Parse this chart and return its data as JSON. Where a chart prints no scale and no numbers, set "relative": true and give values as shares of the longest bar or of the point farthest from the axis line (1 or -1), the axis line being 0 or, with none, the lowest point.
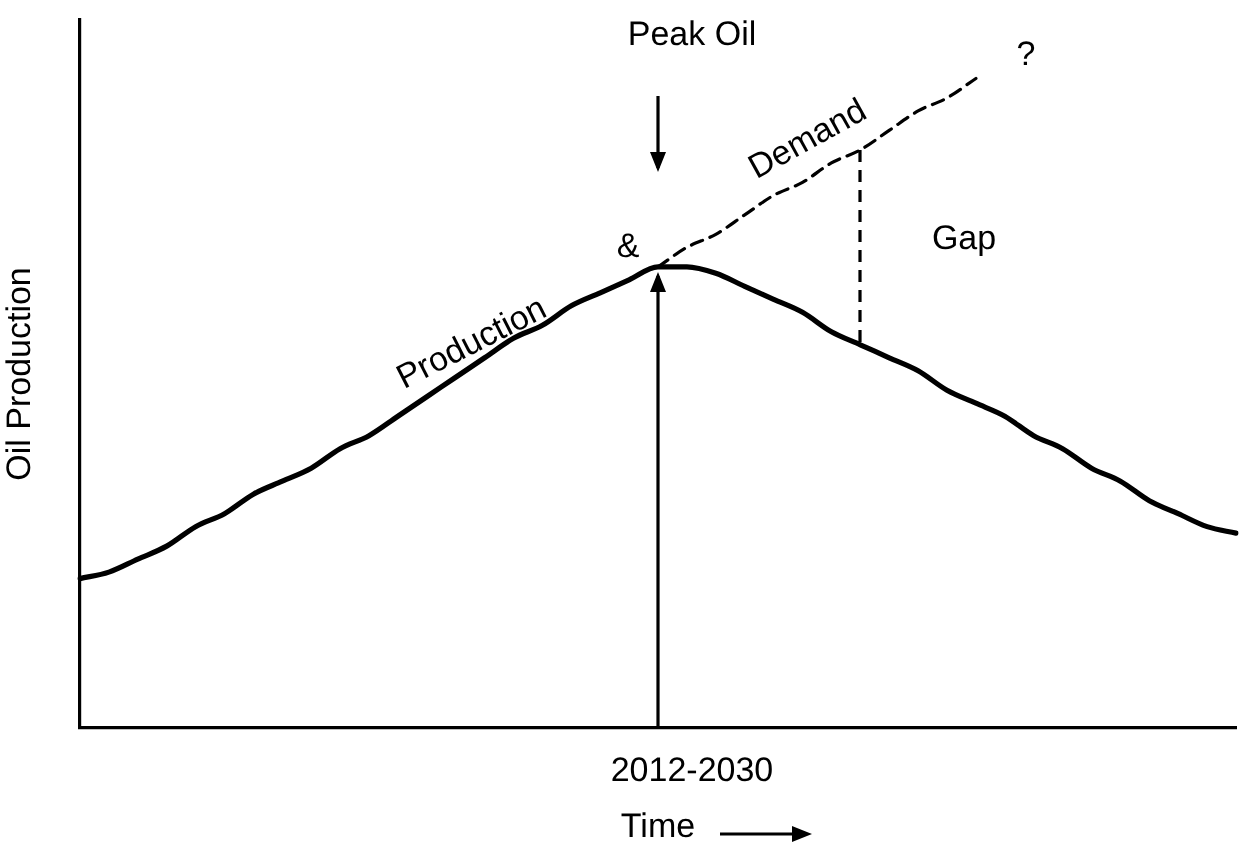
{
  "chart_data": {
    "type": "line",
    "xlabel": "Time",
    "ylabel": "Oil Production",
    "relative": true,
    "marker": "none",
    "categories": [
      null,
      null,
      null,
      null,
      null,
      null,
      null,
      null,
      null,
      null,
      null,
      null,
      null,
      null,
      null,
      null,
      null,
      null,
      null,
      null,
      null,
      null,
      null,
      null,
      null,
      null,
      null,
      null,
      null,
      null,
      null,
      null,
      null,
      null,
      null,
      null,
      null,
      null,
      null,
      null,
      null
    ],
    "series": [
      {
        "color": "#000000",
        "line_style": "solid",
        "values": [
          0.23,
          0.24,
          0.26,
          0.28,
          0.31,
          0.33,
          0.36,
          0.38,
          0.4,
          0.43,
          0.45,
          0.48,
          0.51,
          0.54,
          0.57,
          0.6,
          0.62,
          0.65,
          0.67,
          0.69,
          0.71,
          0.71,
          0.7,
          0.68,
          0.66,
          0.64,
          0.61,
          0.59,
          0.57,
          0.55,
          0.52,
          0.5,
          0.48,
          0.45,
          0.43,
          0.4,
          0.38,
          0.35,
          0.33,
          0.31,
          0.3
        ]
      },
      {
        "color": "#000000",
        "line_style": "dashed",
        "values": [
          null,
          null,
          null,
          null,
          null,
          null,
          null,
          null,
          null,
          null,
          null,
          null,
          null,
          null,
          null,
          null,
          null,
          null,
          null,
          null,
          0.71,
          0.74,
          0.76,
          0.79,
          0.82,
          0.84,
          0.87,
          0.89,
          0.92,
          0.95,
          0.97,
          1,
          null,
          null,
          null,
          null,
          null,
          null,
          null,
          null,
          null
        ]
      }
    ],
    "annotations": [
      "Peak Oil",
      "Production",
      "&",
      "Demand",
      "?",
      "Gap",
      "2012-2030"
    ]
  }
}
